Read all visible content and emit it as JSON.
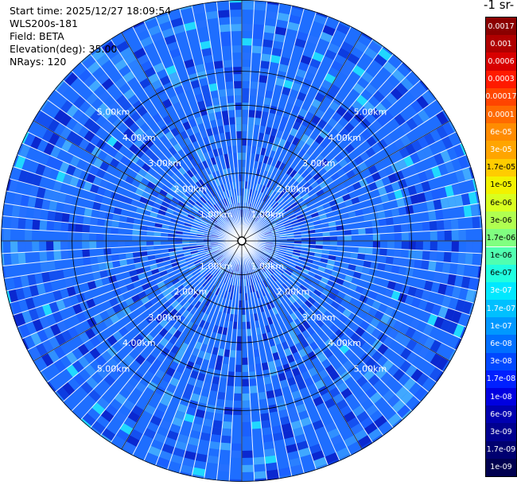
{
  "info": {
    "start_time": "Start time: 2025/12/27 18:09:54",
    "instrument": "WLS200s-181",
    "field": "Field: BETA",
    "elevation": "Elevation(deg): 35.00",
    "nrays": "NRays: 120"
  },
  "colorbar": {
    "title": "-1 sr-",
    "ticks": [
      "0.0017",
      "0.001",
      "0.0006",
      "0.0003",
      "0.00017",
      "0.0001",
      "6e-05",
      "3e-05",
      "1.7e-05",
      "1e-05",
      "6e-06",
      "3e-06",
      "1.7e-06",
      "1e-06",
      "6e-07",
      "3e-07",
      "1.7e-07",
      "1e-07",
      "6e-08",
      "3e-08",
      "1.7e-08",
      "1e-08",
      "6e-09",
      "3e-09",
      "1.7e-09",
      "1e-09"
    ],
    "colors": [
      "#8b0000",
      "#b00000",
      "#d80000",
      "#ff1a00",
      "#ff4500",
      "#ff6a00",
      "#ff8c00",
      "#ffa500",
      "#ffcc00",
      "#f2f200",
      "#d8ff20",
      "#b0ff50",
      "#80ff80",
      "#50ffb0",
      "#20ffe0",
      "#00e8ff",
      "#00c0ff",
      "#0098ff",
      "#0070ff",
      "#0048ff",
      "#0020ff",
      "#0000e0",
      "#0000b0",
      "#000090",
      "#000070",
      "#000050"
    ]
  },
  "chart_data": {
    "type": "polar-ppi",
    "field": "BETA",
    "elevation_deg": 35.0,
    "n_rays": 120,
    "range_rings_km": [
      1,
      2,
      3,
      4,
      5
    ],
    "ring_labels": [
      "1.00km",
      "2.00km",
      "3.00km",
      "4.00km",
      "5.00km"
    ],
    "spokes_deg": [
      0,
      30,
      60,
      90,
      120,
      150,
      180,
      210,
      240,
      270,
      300,
      330
    ],
    "max_range_km": 7.1,
    "dominant_value_range": [
      "1e-08",
      "6e-08"
    ],
    "colors": {
      "background_scan": "#1e6eff",
      "low": "#0000e0",
      "high": "#20d8ff",
      "grid": "#000000",
      "ray_gap": "#ffffff"
    }
  }
}
